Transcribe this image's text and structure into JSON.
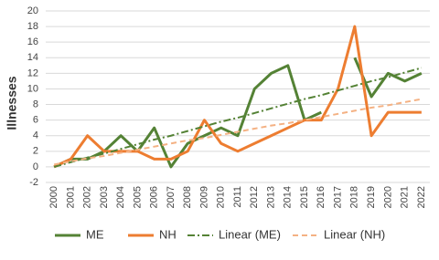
{
  "chart_data": {
    "type": "line",
    "ylabel": "Illnesses",
    "categories": [
      "2000",
      "2001",
      "2002",
      "2003",
      "2004",
      "2005",
      "2006",
      "2007",
      "2008",
      "2009",
      "2010",
      "2011",
      "2012",
      "2013",
      "2014",
      "2015",
      "2016",
      "2017",
      "2018",
      "2019",
      "2020",
      "2021",
      "2022"
    ],
    "series": [
      {
        "name": "ME",
        "color": "#548235",
        "style": "solid",
        "values": [
          0,
          1,
          1,
          2,
          4,
          2,
          5,
          0,
          3,
          4,
          5,
          4,
          10,
          12,
          13,
          6,
          7,
          null,
          14,
          9,
          12,
          11,
          12
        ]
      },
      {
        "name": "NH",
        "color": "#ed7d31",
        "style": "solid",
        "values": [
          0,
          1,
          4,
          2,
          2,
          2,
          1,
          1,
          2,
          6,
          3,
          2,
          3,
          4,
          5,
          6,
          6,
          10,
          18,
          4,
          7,
          7,
          7
        ]
      },
      {
        "name": "Linear (ME)",
        "color": "#548235",
        "style": "dashdot",
        "values": [
          0,
          0.6,
          1.2,
          1.7,
          2.3,
          2.9,
          3.5,
          4.0,
          4.6,
          5.2,
          5.8,
          6.3,
          6.9,
          7.5,
          8.1,
          8.7,
          9.2,
          9.8,
          10.4,
          11.0,
          11.5,
          12.1,
          12.7
        ]
      },
      {
        "name": "Linear (NH)",
        "color": "#f4b183",
        "style": "dash",
        "values": [
          0.3,
          0.7,
          1.1,
          1.4,
          1.8,
          2.2,
          2.6,
          3.0,
          3.4,
          3.7,
          4.1,
          4.5,
          4.9,
          5.3,
          5.6,
          6.0,
          6.4,
          6.8,
          7.2,
          7.6,
          7.9,
          8.3,
          8.7
        ]
      }
    ],
    "ylim": [
      -2,
      20
    ],
    "yticks": [
      -2,
      0,
      2,
      4,
      6,
      8,
      10,
      12,
      14,
      16,
      18,
      20
    ],
    "grid": true,
    "legend": "bottom"
  }
}
